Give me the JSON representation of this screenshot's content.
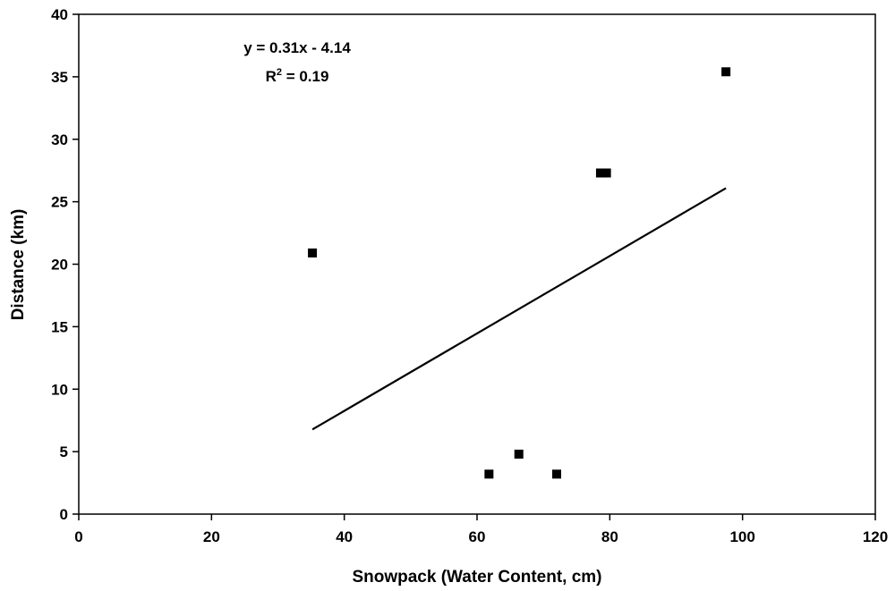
{
  "chart_data": {
    "type": "scatter",
    "title": "",
    "xlabel": "Snowpack (Water Content, cm)",
    "ylabel": "Distance (km)",
    "xlim": [
      0,
      120
    ],
    "ylim": [
      0,
      40
    ],
    "xticks": [
      0,
      20,
      40,
      60,
      80,
      100,
      120
    ],
    "yticks": [
      0,
      5,
      10,
      15,
      20,
      25,
      30,
      35,
      40
    ],
    "grid": false,
    "legend": "none",
    "marker_color": "#000000",
    "trendline_color": "#000000",
    "series": [
      {
        "marker": "square",
        "points": [
          {
            "x": 35.2,
            "y": 20.9
          },
          {
            "x": 61.8,
            "y": 3.2
          },
          {
            "x": 66.3,
            "y": 4.8
          },
          {
            "x": 72.0,
            "y": 3.2
          },
          {
            "x": 78.6,
            "y": 27.3
          },
          {
            "x": 79.5,
            "y": 27.3
          },
          {
            "x": 97.5,
            "y": 35.4
          }
        ]
      }
    ],
    "trendline": {
      "slope": 0.31,
      "intercept": -4.14,
      "x_range": [
        35.2,
        97.5
      ]
    },
    "annotations": {
      "equation": "y = 0.31x - 4.14",
      "r2_prefix": "R",
      "r2_sup": "2",
      "r2_suffix": " = 0.19"
    }
  }
}
